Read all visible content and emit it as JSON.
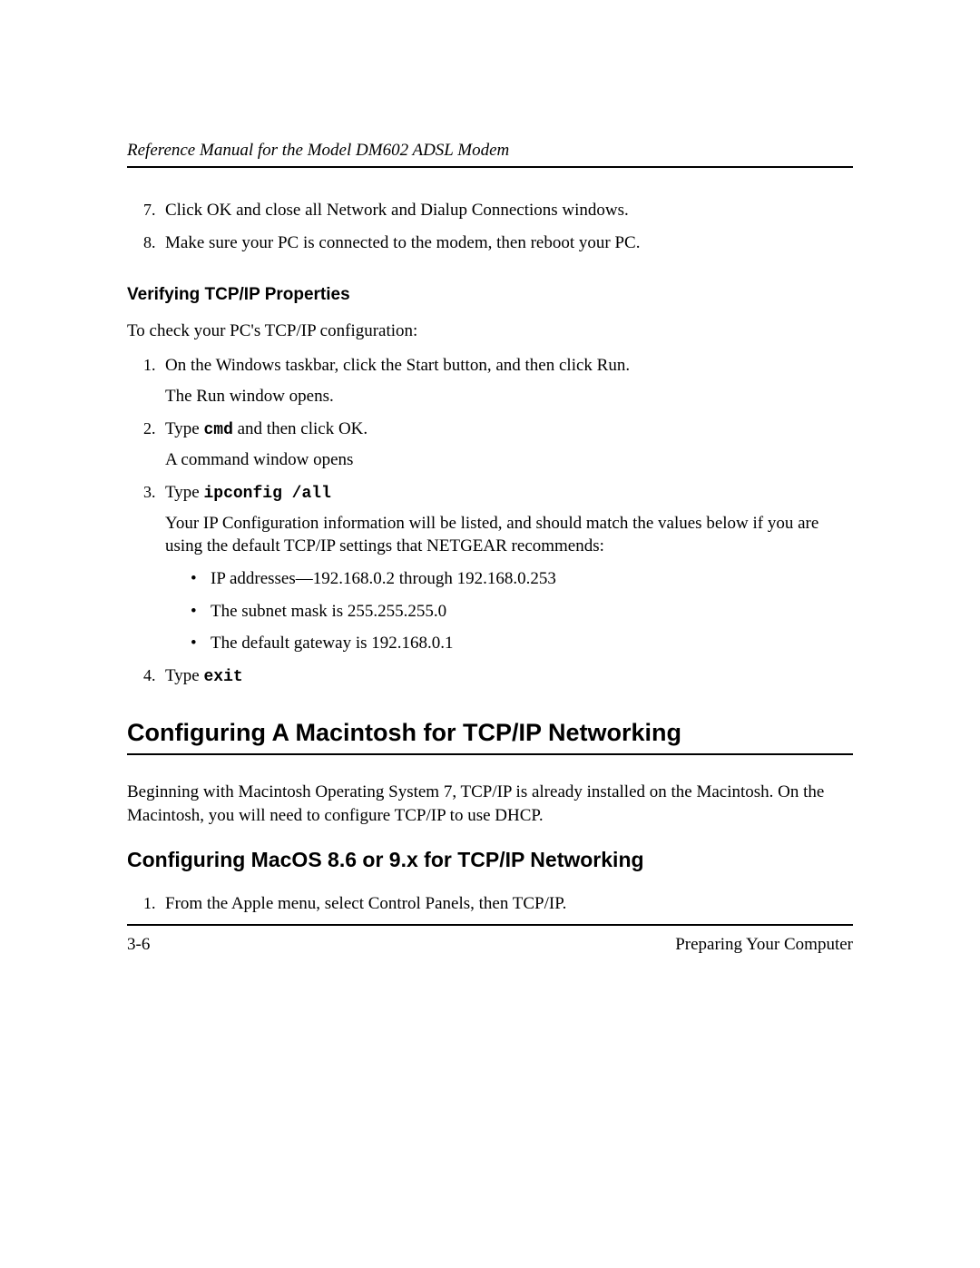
{
  "header": {
    "title": "Reference Manual for the Model DM602 ADSL Modem"
  },
  "continued_steps": {
    "start": 7,
    "items": [
      {
        "text": "Click OK and close all Network and Dialup Connections windows."
      },
      {
        "text": "Make sure your PC is connected to the modem, then reboot your PC."
      }
    ]
  },
  "section_verify": {
    "heading": "Verifying TCP/IP Properties",
    "intro": "To check your PC's TCP/IP configuration:",
    "steps": [
      {
        "text": "On the Windows taskbar, click the Start button, and then click Run.",
        "after": "The Run window opens."
      },
      {
        "pre": "Type ",
        "code": "cmd",
        "post": " and then click OK.",
        "after": "A command window opens"
      },
      {
        "pre": "Type ",
        "code": "ipconfig /all",
        "post": "",
        "after": "Your IP Configuration information will be listed, and should match the values below if you are using the default TCP/IP settings that NETGEAR recommends:",
        "bullets": [
          "IP addresses—192.168.0.2 through 192.168.0.253",
          "The subnet mask is 255.255.255.0",
          "The default gateway is 192.168.0.1"
        ]
      },
      {
        "pre": "Type ",
        "code": "exit",
        "post": ""
      }
    ]
  },
  "section_mac": {
    "heading": "Configuring A Macintosh for TCP/IP Networking",
    "para": "Beginning with Macintosh Operating System 7, TCP/IP is already installed on the Macintosh. On the Macintosh, you will need to configure TCP/IP to use DHCP."
  },
  "section_macos": {
    "heading": "Configuring MacOS 8.6 or 9.x for TCP/IP Networking",
    "steps": [
      {
        "text": "From the Apple menu, select Control Panels, then TCP/IP."
      }
    ]
  },
  "footer": {
    "page": "3-6",
    "chapter": "Preparing Your Computer"
  }
}
